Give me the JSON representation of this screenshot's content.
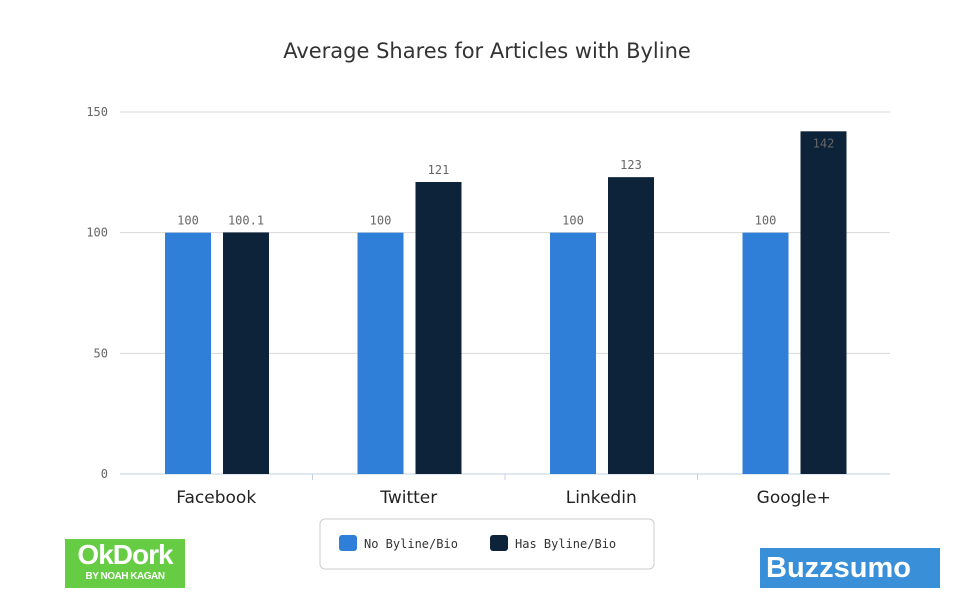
{
  "chart_data": {
    "type": "bar",
    "title": "Average Shares for Articles with Byline",
    "categories": [
      "Facebook",
      "Twitter",
      "Linkedin",
      "Google+"
    ],
    "series": [
      {
        "name": "No Byline/Bio",
        "color": "#2f7ed8",
        "values": [
          100,
          100,
          100,
          100
        ],
        "labels": [
          "100",
          "100",
          "100",
          "100"
        ]
      },
      {
        "name": "Has Byline/Bio",
        "color": "#0d233a",
        "values": [
          100.1,
          121,
          123,
          142
        ],
        "labels": [
          "100.1",
          "121",
          "123",
          "142"
        ]
      }
    ],
    "ylim": [
      0,
      150
    ],
    "yticks": [
      0,
      50,
      100,
      150
    ],
    "grid": true,
    "legend": "bottom"
  },
  "logos": {
    "okdork": {
      "title": "OkDork",
      "subtitle": "BY NOAH KAGAN",
      "color": "#66cc44"
    },
    "buzzsumo": {
      "title": "Buzzsumo",
      "color": "#3a8fd9"
    }
  }
}
